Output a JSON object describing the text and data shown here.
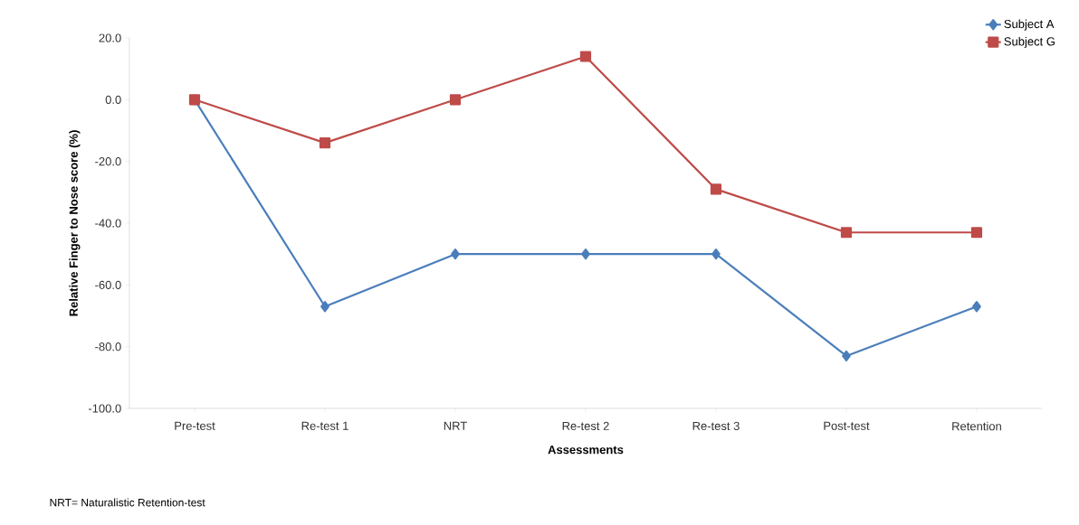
{
  "chart_data": {
    "type": "line",
    "xlabel": "Assessments",
    "ylabel": "Relative Finger to Nose score (%)",
    "categories": [
      "Pre-test",
      "Re-test 1",
      "NRT",
      "Re-test 2",
      "Re-test 3",
      "Post-test",
      "Retention"
    ],
    "series": [
      {
        "name": "Subject A",
        "color": "#4a7ebb",
        "marker": "diamond",
        "values": [
          0,
          -67,
          -50,
          -50,
          -50,
          -83,
          -67
        ]
      },
      {
        "name": "Subject G",
        "color": "#be4b48",
        "marker": "square",
        "values": [
          0,
          -14,
          0,
          14,
          -29,
          -43,
          -43
        ]
      }
    ],
    "ylim": [
      -100,
      20
    ],
    "yticks": [
      {
        "value": -100,
        "label": "-100.0"
      },
      {
        "value": -80,
        "label": "-80.0"
      },
      {
        "value": -60,
        "label": "-60.0"
      },
      {
        "value": -40,
        "label": "-40.0"
      },
      {
        "value": -20,
        "label": "-20.0"
      },
      {
        "value": 0,
        "label": "0.0"
      },
      {
        "value": 20,
        "label": "20.0"
      }
    ],
    "legend": "top right",
    "line_style": "solid",
    "annotations": [
      "NRT= Naturalistic Retention-test"
    ]
  }
}
